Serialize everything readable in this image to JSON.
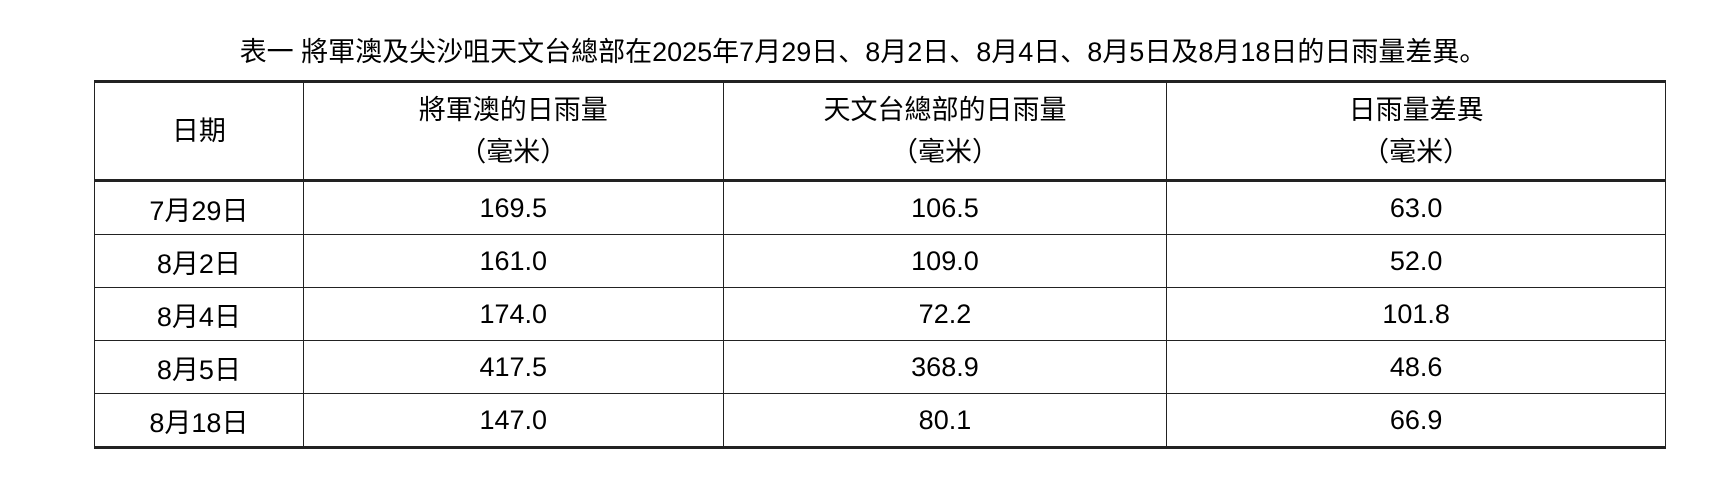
{
  "caption": "表一 將軍澳及尖沙咀天文台總部在2025年7月29日、8月2日、8月4日、8月5日及8月18日的日雨量差異。",
  "headers": [
    {
      "line1": "日期",
      "line2": ""
    },
    {
      "line1": "將軍澳的日雨量",
      "line2": "（毫米）"
    },
    {
      "line1": "天文台總部的日雨量",
      "line2": "（毫米）"
    },
    {
      "line1": "日雨量差異",
      "line2": "（毫米）"
    }
  ],
  "rows": [
    [
      "7月29日",
      "169.5",
      "106.5",
      "63.0"
    ],
    [
      "8月2日",
      "161.0",
      "109.0",
      "52.0"
    ],
    [
      "8月4日",
      "174.0",
      "72.2",
      "101.8"
    ],
    [
      "8月5日",
      "417.5",
      "368.9",
      "48.6"
    ],
    [
      "8月18日",
      "147.0",
      "80.1",
      "66.9"
    ]
  ]
}
